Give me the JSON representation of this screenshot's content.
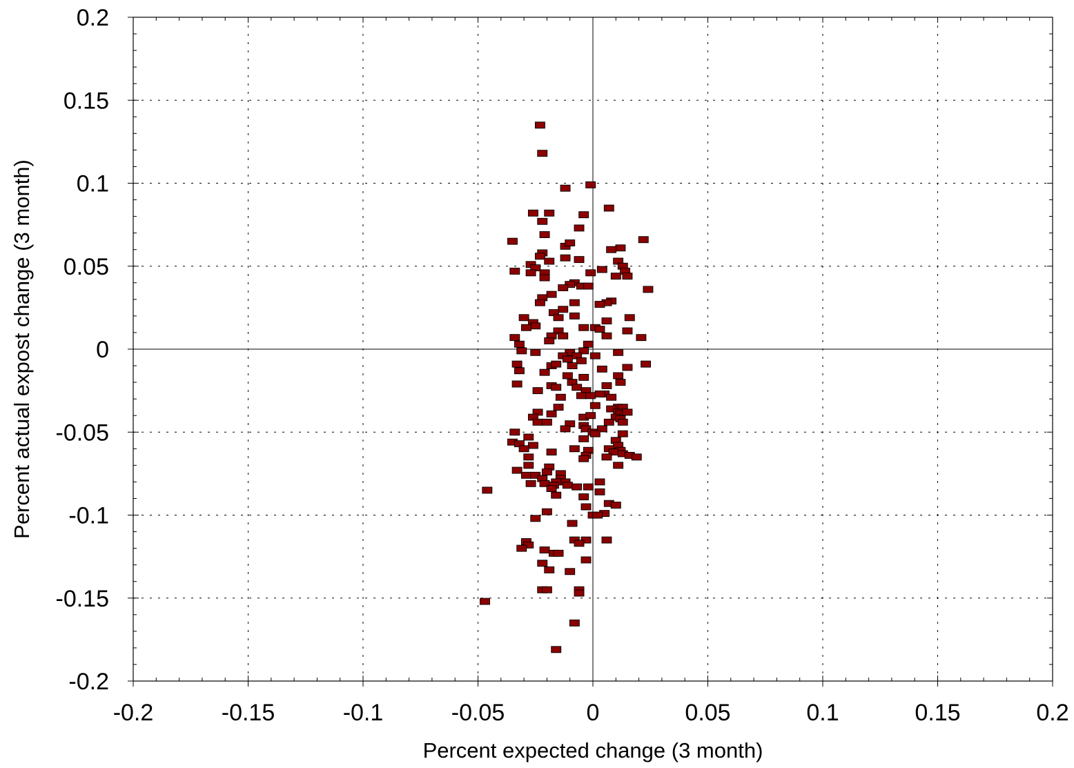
{
  "chart_data": {
    "type": "scatter",
    "title": "",
    "xlabel": "Percent expected change (3 month)",
    "ylabel": "Percent actual expost change (3 month)",
    "xlim": [
      -0.2,
      0.2
    ],
    "ylim": [
      -0.2,
      0.2
    ],
    "x_ticks": [
      -0.2,
      -0.15,
      -0.1,
      -0.05,
      0,
      0.05,
      0.1,
      0.15,
      0.2
    ],
    "y_ticks": [
      -0.2,
      -0.15,
      -0.1,
      -0.05,
      0,
      0.05,
      0.1,
      0.15,
      0.2
    ],
    "x_tick_labels": [
      "-0.2",
      "-0.15",
      "-0.1",
      "-0.05",
      "0",
      "0.05",
      "0.1",
      "0.15",
      "0.2"
    ],
    "y_tick_labels": [
      "-0.2",
      "-0.15",
      "-0.1",
      "-0.05",
      "0",
      "0.05",
      "0.1",
      "0.15",
      "0.2"
    ],
    "grid": true,
    "marker_color": "#8b0000",
    "series": [
      {
        "points": [
          [
            -0.023,
            0.135
          ],
          [
            -0.022,
            0.118
          ],
          [
            -0.012,
            0.097
          ],
          [
            -0.001,
            0.099
          ],
          [
            0.007,
            0.085
          ],
          [
            -0.026,
            0.082
          ],
          [
            -0.019,
            0.082
          ],
          [
            -0.004,
            0.081
          ],
          [
            -0.022,
            0.077
          ],
          [
            -0.006,
            0.073
          ],
          [
            -0.021,
            0.069
          ],
          [
            -0.035,
            0.065
          ],
          [
            0.022,
            0.066
          ],
          [
            -0.012,
            0.062
          ],
          [
            -0.01,
            0.064
          ],
          [
            0.012,
            0.061
          ],
          [
            0.008,
            0.06
          ],
          [
            -0.022,
            0.058
          ],
          [
            -0.023,
            0.056
          ],
          [
            -0.012,
            0.055
          ],
          [
            -0.006,
            0.054
          ],
          [
            0.011,
            0.053
          ],
          [
            -0.019,
            0.053
          ],
          [
            -0.027,
            0.051
          ],
          [
            -0.025,
            0.049
          ],
          [
            0.013,
            0.05
          ],
          [
            0.014,
            0.047
          ],
          [
            0.004,
            0.048
          ],
          [
            -0.034,
            0.047
          ],
          [
            -0.021,
            0.046
          ],
          [
            -0.027,
            0.046
          ],
          [
            -0.001,
            0.046
          ],
          [
            0.01,
            0.044
          ],
          [
            0.015,
            0.044
          ],
          [
            -0.021,
            0.043
          ],
          [
            -0.008,
            0.04
          ],
          [
            -0.01,
            0.039
          ],
          [
            -0.013,
            0.037
          ],
          [
            -0.005,
            0.038
          ],
          [
            -0.002,
            0.038
          ],
          [
            0.024,
            0.036
          ],
          [
            -0.018,
            0.033
          ],
          [
            -0.022,
            0.031
          ],
          [
            -0.008,
            0.028
          ],
          [
            -0.023,
            0.028
          ],
          [
            0.008,
            0.029
          ],
          [
            0.006,
            0.028
          ],
          [
            0.003,
            0.027
          ],
          [
            -0.013,
            0.024
          ],
          [
            -0.017,
            0.022
          ],
          [
            -0.008,
            0.02
          ],
          [
            -0.015,
            0.019
          ],
          [
            -0.03,
            0.019
          ],
          [
            0.016,
            0.019
          ],
          [
            -0.026,
            0.016
          ],
          [
            -0.025,
            0.014
          ],
          [
            -0.029,
            0.013
          ],
          [
            0.006,
            0.017
          ],
          [
            0.001,
            0.013
          ],
          [
            0.003,
            0.012
          ],
          [
            -0.004,
            0.013
          ],
          [
            -0.015,
            0.011
          ],
          [
            0.015,
            0.011
          ],
          [
            -0.018,
            0.008
          ],
          [
            -0.013,
            0.008
          ],
          [
            -0.034,
            0.007
          ],
          [
            0.021,
            0.007
          ],
          [
            0.006,
            0.008
          ],
          [
            -0.019,
            0.005
          ],
          [
            -0.032,
            0.003
          ],
          [
            -0.002,
            0.003
          ],
          [
            -0.031,
            -0.001
          ],
          [
            -0.004,
            -0.001
          ],
          [
            -0.025,
            -0.002
          ],
          [
            -0.01,
            -0.002
          ],
          [
            0.011,
            -0.002
          ],
          [
            -0.013,
            -0.004
          ],
          [
            -0.007,
            -0.004
          ],
          [
            -0.011,
            -0.006
          ],
          [
            0.001,
            -0.004
          ],
          [
            -0.005,
            -0.007
          ],
          [
            -0.033,
            -0.009
          ],
          [
            -0.018,
            -0.01
          ],
          [
            -0.016,
            -0.009
          ],
          [
            0.023,
            -0.009
          ],
          [
            -0.009,
            -0.01
          ],
          [
            0.015,
            -0.011
          ],
          [
            -0.032,
            -0.013
          ],
          [
            0.004,
            -0.012
          ],
          [
            -0.021,
            -0.014
          ],
          [
            -0.011,
            -0.016
          ],
          [
            0.011,
            -0.016
          ],
          [
            -0.004,
            -0.017
          ],
          [
            -0.009,
            -0.02
          ],
          [
            0.012,
            -0.02
          ],
          [
            -0.033,
            -0.021
          ],
          [
            -0.018,
            -0.022
          ],
          [
            -0.016,
            -0.023
          ],
          [
            -0.007,
            -0.023
          ],
          [
            -0.003,
            -0.025
          ],
          [
            0.006,
            -0.022
          ],
          [
            -0.024,
            -0.025
          ],
          [
            0.005,
            -0.027
          ],
          [
            -0.014,
            -0.029
          ],
          [
            -0.005,
            -0.028
          ],
          [
            0.008,
            -0.029
          ],
          [
            0.003,
            -0.027
          ],
          [
            -0.001,
            -0.028
          ],
          [
            -0.015,
            -0.035
          ],
          [
            0.001,
            -0.034
          ],
          [
            0.011,
            -0.035
          ],
          [
            0.013,
            -0.035
          ],
          [
            0.008,
            -0.036
          ],
          [
            -0.024,
            -0.038
          ],
          [
            0.011,
            -0.038
          ],
          [
            0.012,
            -0.039
          ],
          [
            0.015,
            -0.038
          ],
          [
            -0.018,
            -0.039
          ],
          [
            -0.026,
            -0.041
          ],
          [
            -0.004,
            -0.041
          ],
          [
            -0.001,
            -0.04
          ],
          [
            0.01,
            -0.041
          ],
          [
            0.012,
            -0.042
          ],
          [
            -0.024,
            -0.044
          ],
          [
            -0.02,
            -0.044
          ],
          [
            -0.01,
            -0.045
          ],
          [
            0.007,
            -0.044
          ],
          [
            0.013,
            -0.044
          ],
          [
            -0.004,
            -0.046
          ],
          [
            -0.012,
            -0.048
          ],
          [
            -0.003,
            -0.048
          ],
          [
            0.004,
            -0.048
          ],
          [
            0.0,
            -0.05
          ],
          [
            0.001,
            -0.051
          ],
          [
            0.013,
            -0.051
          ],
          [
            -0.034,
            -0.05
          ],
          [
            -0.028,
            -0.053
          ],
          [
            -0.004,
            -0.054
          ],
          [
            0.01,
            -0.055
          ],
          [
            -0.035,
            -0.056
          ],
          [
            -0.032,
            -0.057
          ],
          [
            -0.026,
            -0.058
          ],
          [
            0.011,
            -0.058
          ],
          [
            -0.008,
            -0.06
          ],
          [
            -0.03,
            -0.06
          ],
          [
            -0.002,
            -0.061
          ],
          [
            0.007,
            -0.06
          ],
          [
            0.012,
            -0.061
          ],
          [
            -0.018,
            -0.062
          ],
          [
            -0.003,
            -0.064
          ],
          [
            0.009,
            -0.062
          ],
          [
            0.013,
            -0.063
          ],
          [
            0.016,
            -0.064
          ],
          [
            0.019,
            -0.065
          ],
          [
            0.006,
            -0.065
          ],
          [
            -0.028,
            -0.065
          ],
          [
            -0.004,
            -0.066
          ],
          [
            -0.028,
            -0.07
          ],
          [
            -0.019,
            -0.071
          ],
          [
            0.011,
            -0.07
          ],
          [
            -0.033,
            -0.073
          ],
          [
            -0.02,
            -0.074
          ],
          [
            -0.014,
            -0.075
          ],
          [
            -0.029,
            -0.076
          ],
          [
            -0.025,
            -0.076
          ],
          [
            -0.022,
            -0.078
          ],
          [
            -0.014,
            -0.078
          ],
          [
            -0.012,
            -0.08
          ],
          [
            -0.016,
            -0.08
          ],
          [
            0.003,
            -0.08
          ],
          [
            -0.027,
            -0.081
          ],
          [
            -0.021,
            -0.081
          ],
          [
            -0.017,
            -0.082
          ],
          [
            -0.011,
            -0.082
          ],
          [
            -0.018,
            -0.084
          ],
          [
            -0.007,
            -0.083
          ],
          [
            -0.002,
            -0.083
          ],
          [
            -0.046,
            -0.085
          ],
          [
            0.003,
            -0.086
          ],
          [
            -0.016,
            -0.088
          ],
          [
            -0.004,
            -0.089
          ],
          [
            0.007,
            -0.093
          ],
          [
            0.01,
            -0.094
          ],
          [
            -0.003,
            -0.095
          ],
          [
            -0.02,
            -0.098
          ],
          [
            0.005,
            -0.099
          ],
          [
            0.0,
            -0.1
          ],
          [
            0.002,
            -0.1
          ],
          [
            -0.025,
            -0.102
          ],
          [
            -0.009,
            -0.105
          ],
          [
            -0.008,
            -0.115
          ],
          [
            -0.003,
            -0.115
          ],
          [
            0.006,
            -0.115
          ],
          [
            -0.029,
            -0.116
          ],
          [
            -0.028,
            -0.118
          ],
          [
            -0.006,
            -0.117
          ],
          [
            -0.031,
            -0.12
          ],
          [
            -0.021,
            -0.121
          ],
          [
            -0.017,
            -0.123
          ],
          [
            -0.015,
            -0.123
          ],
          [
            -0.003,
            -0.127
          ],
          [
            -0.022,
            -0.129
          ],
          [
            -0.019,
            -0.133
          ],
          [
            -0.01,
            -0.134
          ],
          [
            -0.022,
            -0.145
          ],
          [
            -0.02,
            -0.145
          ],
          [
            -0.006,
            -0.145
          ],
          [
            -0.006,
            -0.147
          ],
          [
            -0.047,
            -0.152
          ],
          [
            -0.008,
            -0.165
          ],
          [
            -0.016,
            -0.181
          ]
        ]
      }
    ]
  }
}
